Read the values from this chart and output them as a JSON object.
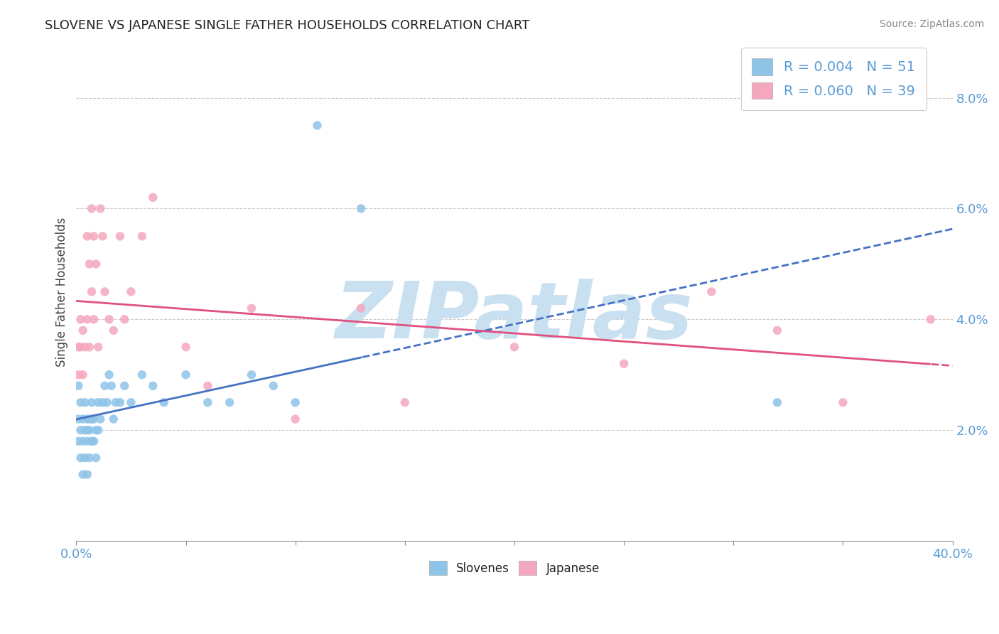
{
  "title": "SLOVENE VS JAPANESE SINGLE FATHER HOUSEHOLDS CORRELATION CHART",
  "source": "Source: ZipAtlas.com",
  "ylabel": "Single Father Households",
  "xlim": [
    0.0,
    0.4
  ],
  "ylim": [
    0.0,
    0.09
  ],
  "xticks": [
    0.0,
    0.05,
    0.1,
    0.15,
    0.2,
    0.25,
    0.3,
    0.35,
    0.4
  ],
  "yticks": [
    0.02,
    0.04,
    0.06,
    0.08
  ],
  "slovene_color": "#8ec4e8",
  "japanese_color": "#f4a8be",
  "slovene_line_color": "#4472c4",
  "japanese_line_color": "#e05080",
  "slovene_R": 0.004,
  "slovene_N": 51,
  "japanese_R": 0.06,
  "japanese_N": 39,
  "slovene_x": [
    0.001,
    0.001,
    0.001,
    0.002,
    0.002,
    0.002,
    0.003,
    0.003,
    0.003,
    0.004,
    0.004,
    0.004,
    0.005,
    0.005,
    0.005,
    0.005,
    0.006,
    0.006,
    0.006,
    0.007,
    0.007,
    0.007,
    0.008,
    0.008,
    0.009,
    0.009,
    0.01,
    0.01,
    0.011,
    0.012,
    0.013,
    0.014,
    0.015,
    0.016,
    0.017,
    0.018,
    0.02,
    0.022,
    0.025,
    0.03,
    0.035,
    0.04,
    0.05,
    0.06,
    0.07,
    0.08,
    0.09,
    0.1,
    0.11,
    0.13,
    0.32
  ],
  "slovene_y": [
    0.028,
    0.022,
    0.018,
    0.025,
    0.02,
    0.015,
    0.022,
    0.018,
    0.012,
    0.025,
    0.02,
    0.015,
    0.02,
    0.022,
    0.018,
    0.012,
    0.02,
    0.022,
    0.015,
    0.022,
    0.018,
    0.025,
    0.018,
    0.022,
    0.02,
    0.015,
    0.025,
    0.02,
    0.022,
    0.025,
    0.028,
    0.025,
    0.03,
    0.028,
    0.022,
    0.025,
    0.025,
    0.028,
    0.025,
    0.03,
    0.028,
    0.025,
    0.03,
    0.025,
    0.025,
    0.03,
    0.028,
    0.025,
    0.075,
    0.06,
    0.025
  ],
  "japanese_x": [
    0.001,
    0.001,
    0.002,
    0.002,
    0.003,
    0.003,
    0.004,
    0.005,
    0.005,
    0.006,
    0.006,
    0.007,
    0.007,
    0.008,
    0.008,
    0.009,
    0.01,
    0.011,
    0.012,
    0.013,
    0.015,
    0.017,
    0.02,
    0.022,
    0.025,
    0.03,
    0.035,
    0.05,
    0.06,
    0.08,
    0.1,
    0.13,
    0.15,
    0.2,
    0.25,
    0.29,
    0.32,
    0.35,
    0.39
  ],
  "japanese_y": [
    0.035,
    0.03,
    0.04,
    0.035,
    0.038,
    0.03,
    0.035,
    0.04,
    0.055,
    0.035,
    0.05,
    0.06,
    0.045,
    0.04,
    0.055,
    0.05,
    0.035,
    0.06,
    0.055,
    0.045,
    0.04,
    0.038,
    0.055,
    0.04,
    0.045,
    0.055,
    0.062,
    0.035,
    0.028,
    0.042,
    0.022,
    0.042,
    0.025,
    0.035,
    0.032,
    0.045,
    0.038,
    0.025,
    0.04
  ],
  "slovene_line_solid_end": 0.13,
  "japanese_line_solid_end": 0.39,
  "watermark": "ZIPatlas",
  "watermark_color": "#c8e0f0",
  "background_color": "#ffffff",
  "grid_color": "#cccccc"
}
